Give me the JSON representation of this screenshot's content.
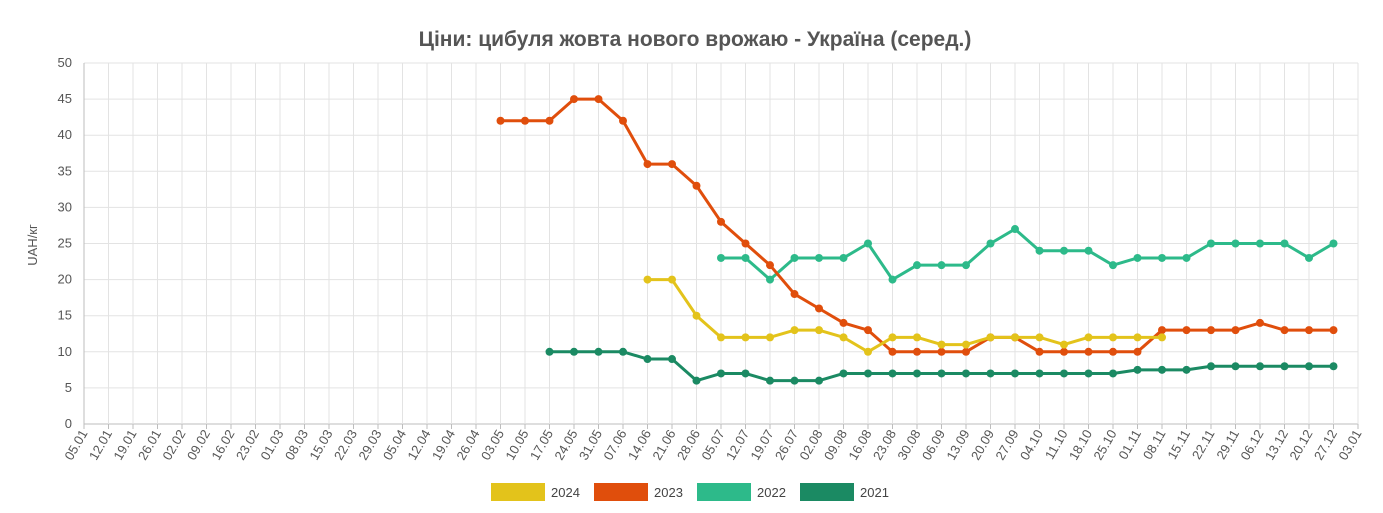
{
  "chart_data": {
    "type": "line",
    "title": "Ціни: цибуля жовта нового врожаю - Україна (серед.)",
    "ylabel": "UAH/кг",
    "xlabel": "",
    "ylim": [
      0,
      50
    ],
    "yticks": [
      0,
      5,
      10,
      15,
      20,
      25,
      30,
      35,
      40,
      45,
      50
    ],
    "grid": true,
    "legend_position": "bottom",
    "x": [
      "05.01",
      "12.01",
      "19.01",
      "26.01",
      "02.02",
      "09.02",
      "16.02",
      "23.02",
      "01.03",
      "08.03",
      "15.03",
      "22.03",
      "29.03",
      "05.04",
      "12.04",
      "19.04",
      "26.04",
      "03.05",
      "10.05",
      "17.05",
      "24.05",
      "31.05",
      "07.06",
      "14.06",
      "21.06",
      "28.06",
      "05.07",
      "12.07",
      "19.07",
      "26.07",
      "02.08",
      "09.08",
      "16.08",
      "23.08",
      "30.08",
      "06.09",
      "13.09",
      "20.09",
      "27.09",
      "04.10",
      "11.10",
      "18.10",
      "25.10",
      "01.11",
      "08.11",
      "15.11",
      "22.11",
      "29.11",
      "06.12",
      "13.12",
      "20.12",
      "27.12",
      "03.01"
    ],
    "series": [
      {
        "name": "2024",
        "color": "#e3c31b",
        "values": [
          null,
          null,
          null,
          null,
          null,
          null,
          null,
          null,
          null,
          null,
          null,
          null,
          null,
          null,
          null,
          null,
          null,
          null,
          null,
          null,
          null,
          null,
          null,
          20,
          20,
          15,
          12,
          12,
          12,
          13,
          13,
          12,
          10,
          12,
          12,
          11,
          11,
          12,
          12,
          12,
          11,
          12,
          12,
          12,
          12,
          null,
          null,
          null,
          null,
          null,
          null,
          null,
          null
        ]
      },
      {
        "name": "2023",
        "color": "#e04e0c",
        "values": [
          null,
          null,
          null,
          null,
          null,
          null,
          null,
          null,
          null,
          null,
          null,
          null,
          null,
          null,
          null,
          null,
          null,
          42,
          42,
          42,
          45,
          45,
          42,
          36,
          36,
          33,
          28,
          25,
          22,
          18,
          16,
          14,
          13,
          10,
          10,
          10,
          10,
          12,
          12,
          10,
          10,
          10,
          10,
          10,
          13,
          13,
          13,
          13,
          14,
          13,
          13,
          13,
          null
        ]
      },
      {
        "name": "2022",
        "color": "#2dba8a",
        "values": [
          null,
          null,
          null,
          null,
          null,
          null,
          null,
          null,
          null,
          null,
          null,
          null,
          null,
          null,
          null,
          null,
          null,
          null,
          null,
          null,
          null,
          null,
          null,
          null,
          null,
          null,
          23,
          23,
          20,
          23,
          23,
          23,
          25,
          20,
          22,
          22,
          22,
          25,
          27,
          24,
          24,
          24,
          22,
          23,
          23,
          23,
          25,
          25,
          25,
          25,
          23,
          25,
          null
        ]
      },
      {
        "name": "2021",
        "color": "#1b8a63",
        "values": [
          null,
          null,
          null,
          null,
          null,
          null,
          null,
          null,
          null,
          null,
          null,
          null,
          null,
          null,
          null,
          null,
          null,
          null,
          null,
          10,
          10,
          10,
          10,
          9,
          9,
          6,
          7,
          7,
          6,
          6,
          6,
          7,
          7,
          7,
          7,
          7,
          7,
          7,
          7,
          7,
          7,
          7,
          7,
          7.5,
          7.5,
          7.5,
          8,
          8,
          8,
          8,
          8,
          8,
          null
        ]
      }
    ]
  }
}
